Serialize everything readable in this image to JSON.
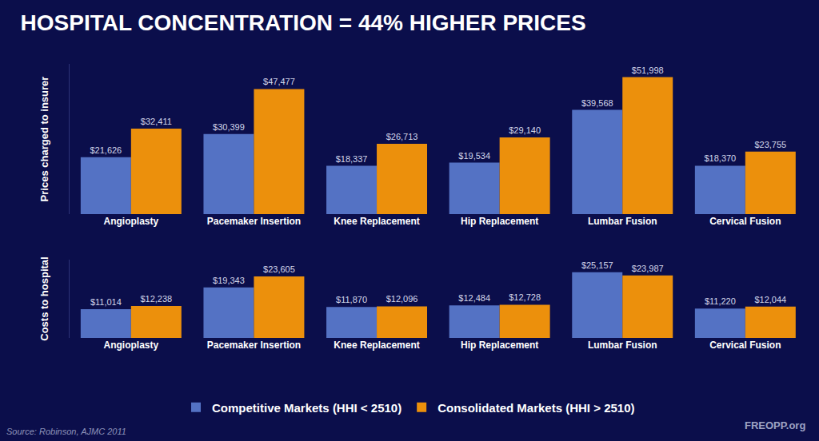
{
  "chart_data": [
    {
      "type": "bar",
      "title": "HOSPITAL CONCENTRATION = 44% HIGHER PRICES",
      "y_label": "Prices charged to insurer",
      "categories": [
        "Angioplasty",
        "Pacemaker Insertion",
        "Knee Replacement",
        "Hip Replacement",
        "Lumbar Fusion",
        "Cervical Fusion"
      ],
      "series": [
        {
          "name": "Competitive Markets (HHI < 2510)",
          "color": "#5472c4",
          "values": [
            21626,
            30399,
            18337,
            19534,
            39568,
            18370
          ],
          "value_labels": [
            "$21,626",
            "$30,399",
            "$18,337",
            "$19,534",
            "$39,568",
            "$18,370"
          ]
        },
        {
          "name": "Consolidated Markets (HHI > 2510)",
          "color": "#ec900c",
          "values": [
            32411,
            47477,
            26713,
            29140,
            51998,
            23755
          ],
          "value_labels": [
            "$32,411",
            "$47,477",
            "$26,713",
            "$29,140",
            "$51,998",
            "$23,755"
          ]
        }
      ],
      "ylim": [
        0,
        57000
      ],
      "data_labels": true,
      "tick_labels": "x",
      "grid": false,
      "legend": "bottom"
    },
    {
      "type": "bar",
      "y_label": "Costs to hospital",
      "categories": [
        "Angioplasty",
        "Pacemaker Insertion",
        "Knee Replacement",
        "Hip Replacement",
        "Lumbar Fusion",
        "Cervical Fusion"
      ],
      "series": [
        {
          "name": "Competitive Markets (HHI < 2510)",
          "color": "#5472c4",
          "values": [
            11014,
            19343,
            11870,
            12484,
            25157,
            11220
          ],
          "value_labels": [
            "$11,014",
            "$19,343",
            "$11,870",
            "$12,484",
            "$25,157",
            "$11,220"
          ]
        },
        {
          "name": "Consolidated Markets (HHI > 2510)",
          "color": "#ec900c",
          "values": [
            12238,
            23605,
            12096,
            12728,
            23987,
            12044
          ],
          "value_labels": [
            "$12,238",
            "$23,605",
            "$12,096",
            "$12,728",
            "$23,987",
            "$12,044"
          ]
        }
      ],
      "ylim": [
        0,
        30000
      ],
      "data_labels": true,
      "tick_labels": "x",
      "grid": false,
      "annotations": [
        "Source: Robinson, AJMC 2011",
        "FREOPP.org"
      ]
    }
  ]
}
